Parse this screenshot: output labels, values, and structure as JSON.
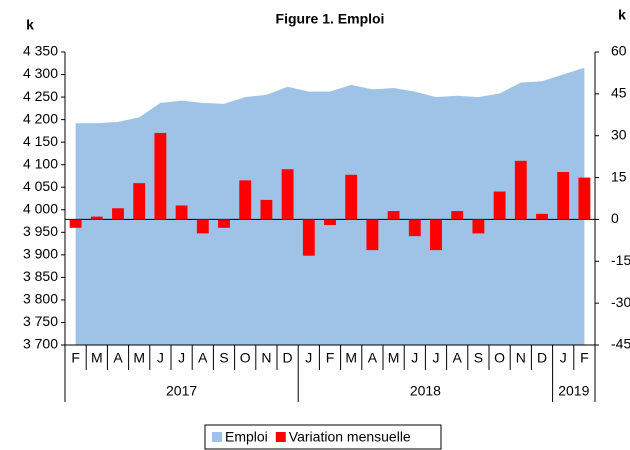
{
  "chart_data": {
    "type": "bar_area",
    "title": "Figure 1. Emploi",
    "y_label": "k",
    "y2_label": "k",
    "categories": [
      "F",
      "M",
      "A",
      "M",
      "J",
      "J",
      "A",
      "S",
      "O",
      "N",
      "D",
      "J",
      "F",
      "M",
      "A",
      "M",
      "J",
      "J",
      "A",
      "S",
      "O",
      "N",
      "D",
      "J",
      "F"
    ],
    "category_years": [
      "2017",
      "2017",
      "2017",
      "2017",
      "2017",
      "2017",
      "2017",
      "2017",
      "2017",
      "2017",
      "2017",
      "2018",
      "2018",
      "2018",
      "2018",
      "2018",
      "2018",
      "2018",
      "2018",
      "2018",
      "2018",
      "2018",
      "2018",
      "2019",
      "2019"
    ],
    "series": [
      {
        "name": "Emploi",
        "type": "area",
        "color": "#9fc3e7",
        "axis": "y",
        "values": [
          4192,
          4192,
          4195,
          4205,
          4237,
          4242,
          4237,
          4235,
          4250,
          4255,
          4273,
          4262,
          4262,
          4277,
          4267,
          4270,
          4262,
          4250,
          4253,
          4250,
          4258,
          4282,
          4285,
          4300,
          4315
        ]
      },
      {
        "name": "Variation mensuelle",
        "type": "bar",
        "color": "#ff0000",
        "axis": "y2",
        "values": [
          -3,
          1,
          4,
          13,
          31,
          5,
          -5,
          -3,
          14,
          7,
          18,
          -13,
          -2,
          16,
          -11,
          3,
          -6,
          -11,
          3,
          -5,
          10,
          21,
          2,
          17,
          15
        ]
      }
    ],
    "ylim": [
      3700,
      4350
    ],
    "yticks": [
      {
        "value": 3700,
        "label": "3 700"
      },
      {
        "value": 3750,
        "label": "3 750"
      },
      {
        "value": 3800,
        "label": "3 800"
      },
      {
        "value": 3850,
        "label": "3 850"
      },
      {
        "value": 3900,
        "label": "3 900"
      },
      {
        "value": 3950,
        "label": "3 950"
      },
      {
        "value": 4000,
        "label": "4 000"
      },
      {
        "value": 4050,
        "label": "4 050"
      },
      {
        "value": 4100,
        "label": "4 100"
      },
      {
        "value": 4150,
        "label": "4 150"
      },
      {
        "value": 4200,
        "label": "4 200"
      },
      {
        "value": 4250,
        "label": "4 250"
      },
      {
        "value": 4300,
        "label": "4 300"
      },
      {
        "value": 4350,
        "label": "4 350"
      }
    ],
    "y2lim": [
      -45,
      60
    ],
    "y2ticks": [
      -45,
      -30,
      -15,
      0,
      15,
      30,
      45,
      60
    ],
    "legend": "bottom"
  }
}
